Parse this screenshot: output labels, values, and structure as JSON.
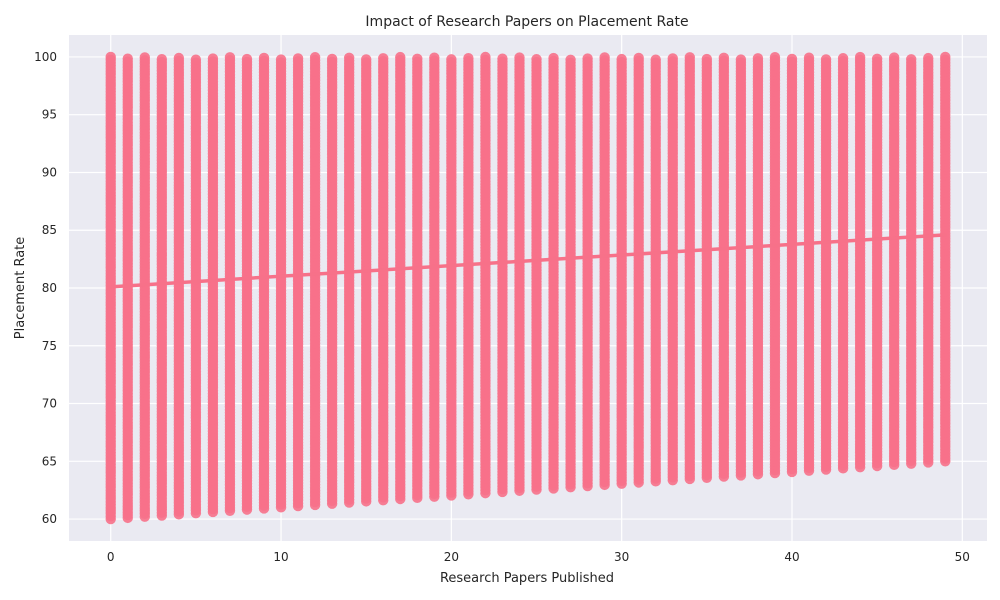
{
  "chart_data": {
    "type": "scatter",
    "title": "Impact of Research Papers on Placement Rate",
    "xlabel": "Research Papers Published",
    "ylabel": "Placement Rate",
    "xlim": [
      -2.45,
      51.45
    ],
    "ylim": [
      58.1,
      101.9
    ],
    "xticks": [
      0,
      10,
      20,
      30,
      40,
      50
    ],
    "yticks": [
      60,
      65,
      70,
      75,
      80,
      85,
      90,
      95,
      100
    ],
    "grid": true,
    "series": [
      {
        "kind": "scatter",
        "x_values": [
          0,
          1,
          2,
          3,
          4,
          5,
          6,
          7,
          8,
          9,
          10,
          11,
          12,
          13,
          14,
          15,
          16,
          17,
          18,
          19,
          20,
          21,
          22,
          23,
          24,
          25,
          26,
          27,
          28,
          29,
          30,
          31,
          32,
          33,
          34,
          35,
          36,
          37,
          38,
          39,
          40,
          41,
          42,
          43,
          44,
          45,
          46,
          47,
          48,
          49
        ],
        "y_min_start": 60.0,
        "y_min_end": 65.0,
        "y_max": 100.0,
        "color": "#f77189"
      },
      {
        "kind": "trend-line",
        "x": [
          0,
          49
        ],
        "y": [
          80.1,
          84.6
        ],
        "color": "#f77189"
      }
    ]
  }
}
